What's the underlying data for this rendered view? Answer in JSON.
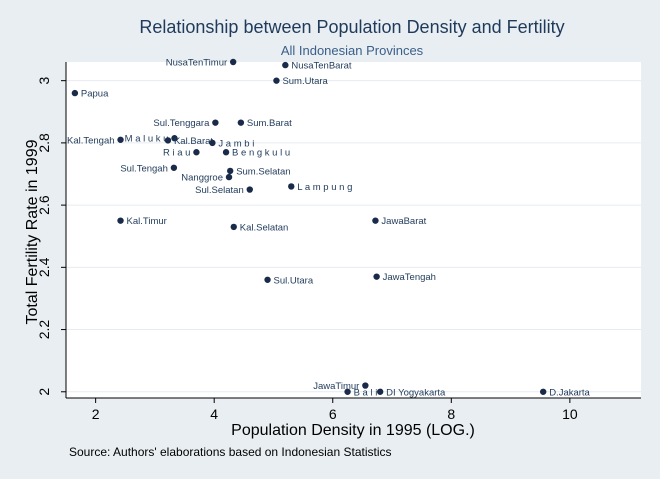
{
  "chart_data": {
    "type": "scatter",
    "title": "Relationship between Population Density and Fertility",
    "subtitle": "All Indonesian Provinces",
    "xlabel": "Population Density in 1995 (LOG.)",
    "ylabel": "Total Fertility Rate in 1999",
    "note": "Source: Authors' elaborations based on Indonesian Statistics",
    "xlim": [
      1.5,
      11.2
    ],
    "ylim": [
      1.98,
      3.06
    ],
    "xticks": [
      2,
      4,
      6,
      8,
      10
    ],
    "yticks": [
      2,
      2.2,
      2.4,
      2.6,
      2.8,
      3
    ],
    "grid": "horizontal",
    "colors": {
      "background": "#e8eef2",
      "plot": "#ffffff",
      "marker": "#1a2b4a",
      "title": "#1f3a5a",
      "subtitle": "#3b5f88",
      "grid": "#e6ecf1"
    },
    "points": [
      {
        "name": "NusaTenTimur",
        "x": 4.32,
        "y": 3.06,
        "label_pos": "left"
      },
      {
        "name": "NusaTenBarat",
        "x": 5.2,
        "y": 3.05,
        "label_pos": "right"
      },
      {
        "name": "Sum.Utara",
        "x": 5.05,
        "y": 3.0,
        "label_pos": "right"
      },
      {
        "name": "Papua",
        "x": 1.65,
        "y": 2.96,
        "label_pos": "right"
      },
      {
        "name": "Sul.Tenggara",
        "x": 4.02,
        "y": 2.865,
        "label_pos": "left"
      },
      {
        "name": "Sum.Barat",
        "x": 4.45,
        "y": 2.865,
        "label_pos": "right"
      },
      {
        "name": "Kal.Tengah",
        "x": 2.42,
        "y": 2.81,
        "label_pos": "left"
      },
      {
        "name": "M a l u k u",
        "x": 3.33,
        "y": 2.815,
        "label_pos": "left"
      },
      {
        "name": "Kal.Barat",
        "x": 3.22,
        "y": 2.808,
        "label_pos": "right"
      },
      {
        "name": "J a m b i",
        "x": 3.97,
        "y": 2.8,
        "label_pos": "right"
      },
      {
        "name": "R i a u",
        "x": 3.7,
        "y": 2.77,
        "label_pos": "left"
      },
      {
        "name": "B e n g k u l u",
        "x": 4.2,
        "y": 2.77,
        "label_pos": "right"
      },
      {
        "name": "Sul.Tengah",
        "x": 3.32,
        "y": 2.72,
        "label_pos": "left"
      },
      {
        "name": "Sum.Selatan",
        "x": 4.27,
        "y": 2.71,
        "label_pos": "right"
      },
      {
        "name": "Nanggroe",
        "x": 4.25,
        "y": 2.69,
        "label_pos": "left"
      },
      {
        "name": "Sul.Selatan",
        "x": 4.6,
        "y": 2.65,
        "label_pos": "left"
      },
      {
        "name": "L a m p u n g",
        "x": 5.3,
        "y": 2.66,
        "label_pos": "right"
      },
      {
        "name": "Kal.Timur",
        "x": 2.42,
        "y": 2.55,
        "label_pos": "right"
      },
      {
        "name": "Kal.Selatan",
        "x": 4.33,
        "y": 2.53,
        "label_pos": "right"
      },
      {
        "name": "JawaBarat",
        "x": 6.72,
        "y": 2.55,
        "label_pos": "right"
      },
      {
        "name": "JawaTengah",
        "x": 6.74,
        "y": 2.37,
        "label_pos": "right"
      },
      {
        "name": "Sul.Utara",
        "x": 4.9,
        "y": 2.36,
        "label_pos": "right"
      },
      {
        "name": "JawaTimur",
        "x": 6.55,
        "y": 2.02,
        "label_pos": "left"
      },
      {
        "name": "B a l i",
        "x": 6.25,
        "y": 2.0,
        "label_pos": "right"
      },
      {
        "name": "DI Yogyakarta",
        "x": 6.8,
        "y": 2.0,
        "label_pos": "right"
      },
      {
        "name": "D.Jakarta",
        "x": 9.55,
        "y": 2.0,
        "label_pos": "right"
      }
    ]
  }
}
